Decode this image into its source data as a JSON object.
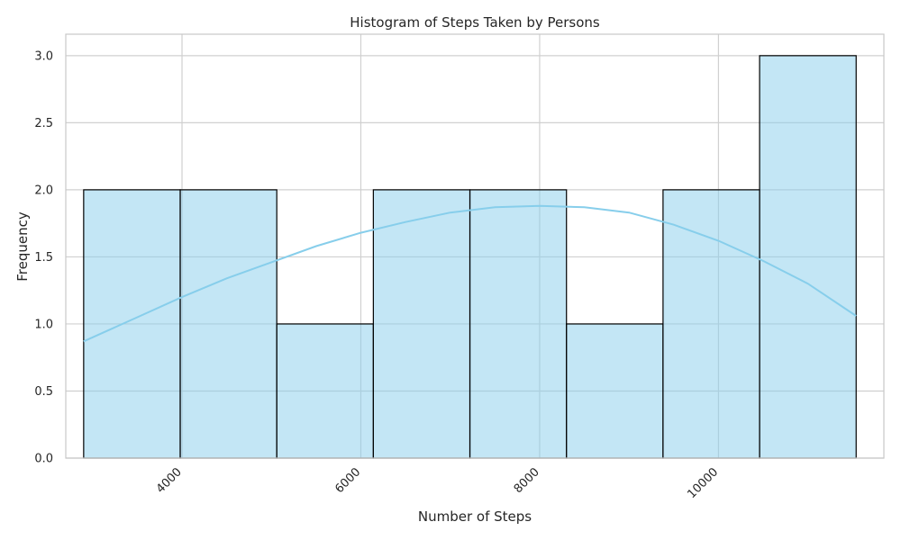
{
  "chart_data": {
    "type": "histogram",
    "title": "Histogram of Steps Taken by Persons",
    "xlabel": "Number of Steps",
    "ylabel": "Frequency",
    "xlim": [
      2700,
      11850
    ],
    "ylim": [
      0,
      3.16
    ],
    "grid": true,
    "bin_edges": [
      2900,
      3980,
      5060,
      6140,
      7220,
      8300,
      9380,
      10460,
      11540
    ],
    "counts": [
      2,
      2,
      1,
      2,
      2,
      1,
      2,
      3
    ],
    "x_ticks": [
      4000,
      6000,
      8000,
      10000
    ],
    "x_tick_labels": [
      "4000",
      "6000",
      "8000",
      "10000"
    ],
    "y_ticks": [
      0.0,
      0.5,
      1.0,
      1.5,
      2.0,
      2.5,
      3.0
    ],
    "y_tick_labels": [
      "0.0",
      "0.5",
      "1.0",
      "1.5",
      "2.0",
      "2.5",
      "3.0"
    ],
    "kde_curve": {
      "x": [
        2900,
        3500,
        4000,
        4500,
        5000,
        5500,
        6000,
        6500,
        7000,
        7500,
        8000,
        8500,
        9000,
        9500,
        10000,
        10500,
        11000,
        11540
      ],
      "y": [
        0.87,
        1.05,
        1.2,
        1.34,
        1.46,
        1.58,
        1.68,
        1.76,
        1.83,
        1.87,
        1.88,
        1.87,
        1.83,
        1.74,
        1.62,
        1.47,
        1.3,
        1.06
      ]
    },
    "colors": {
      "bar_fill": "#87ceeb",
      "bar_edge": "#000000",
      "kde_line": "#87ceeb"
    }
  }
}
